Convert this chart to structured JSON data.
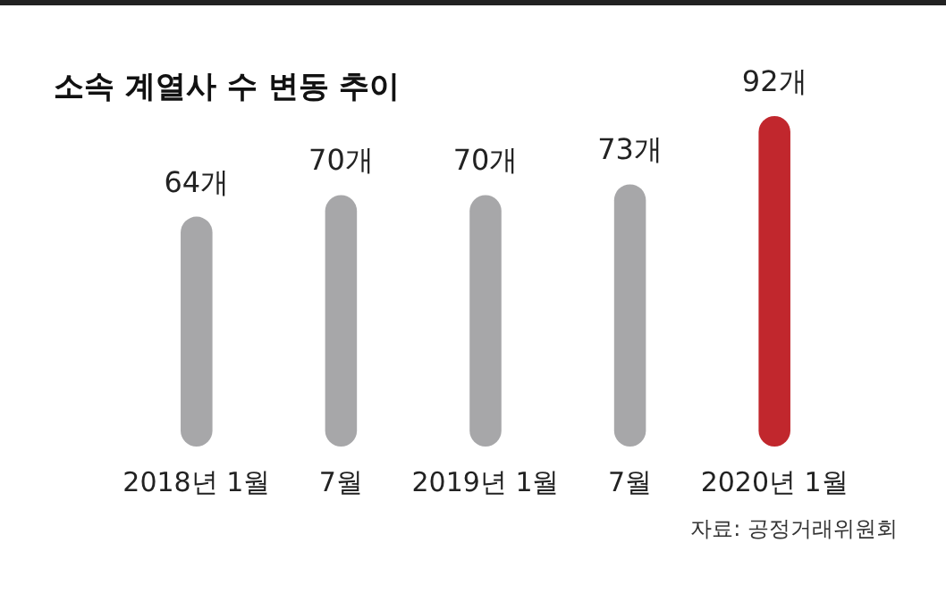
{
  "chart_data": {
    "type": "bar",
    "title": "소속 계열사 수 변동 추이",
    "categories": [
      "2018년 1월",
      "7월",
      "2019년 1월",
      "7월",
      "2020년 1월"
    ],
    "values": [
      64,
      70,
      70,
      73,
      92
    ],
    "value_labels": [
      "64개",
      "70개",
      "70개",
      "73개",
      "92개"
    ],
    "colors": [
      "#a7a7a9",
      "#a7a7a9",
      "#a7a7a9",
      "#a7a7a9",
      "#c1272d"
    ],
    "annotations": [
      "자료: 공정거래위원회"
    ]
  }
}
